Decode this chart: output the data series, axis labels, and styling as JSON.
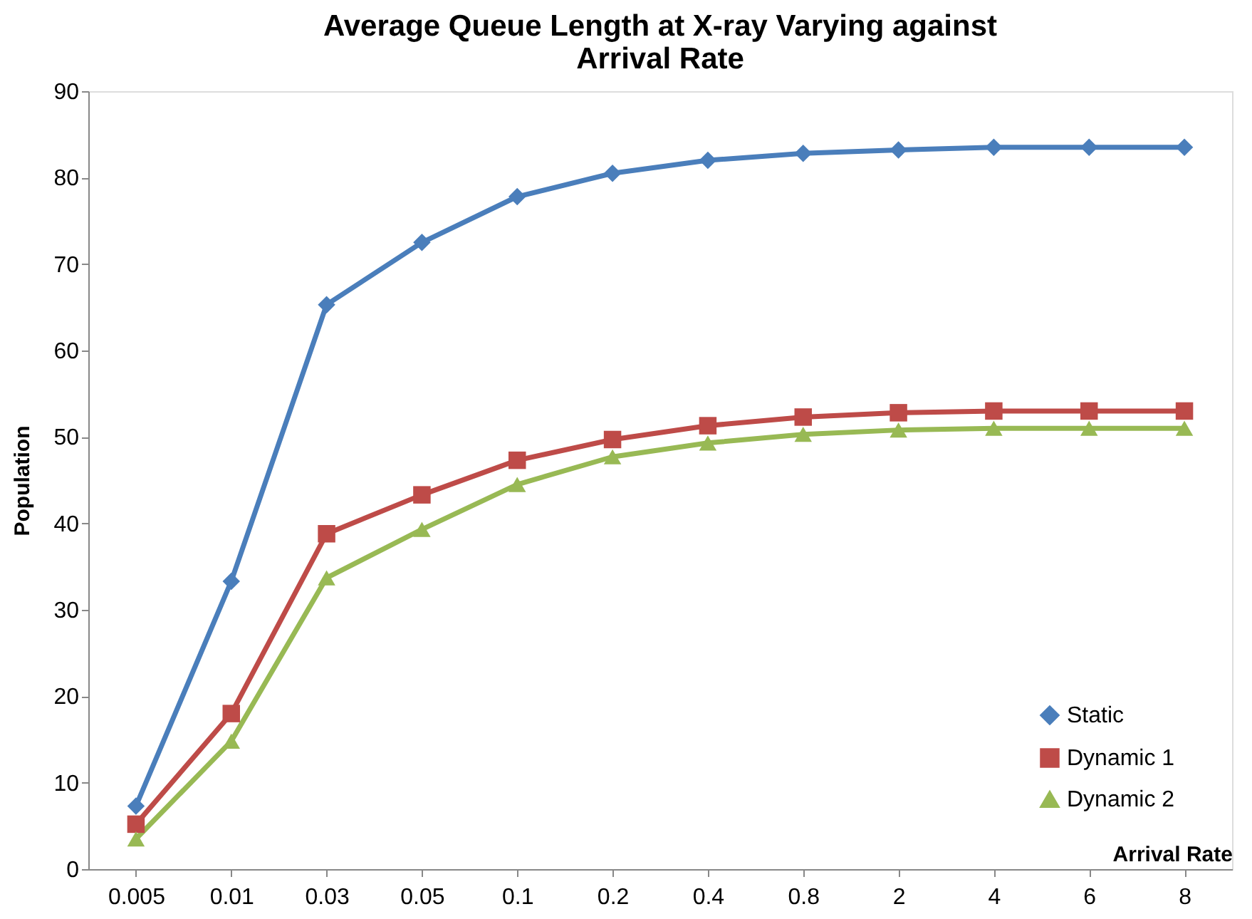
{
  "chart_data": {
    "type": "line",
    "title": "Average Queue Length at X-ray Varying against Arrival Rate",
    "xlabel": "Arrival Rate",
    "ylabel": "Population",
    "categories": [
      "0.005",
      "0.01",
      "0.03",
      "0.05",
      "0.1",
      "0.2",
      "0.4",
      "0.8",
      "2",
      "4",
      "6",
      "8"
    ],
    "ylim": [
      0,
      90
    ],
    "yticks": [
      0,
      10,
      20,
      30,
      40,
      50,
      60,
      70,
      80,
      90
    ],
    "grid": false,
    "legend": "bottom right",
    "line_style": "solid",
    "series": [
      {
        "name": "Static",
        "color": "#4a7ebb",
        "marker": "diamond",
        "values": [
          7.3,
          33.3,
          65.3,
          72.5,
          77.8,
          80.5,
          82,
          82.8,
          83.2,
          83.5,
          83.5,
          83.5
        ]
      },
      {
        "name": "Dynamic 1",
        "color": "#be4b48",
        "marker": "square",
        "values": [
          5.2,
          18,
          38.8,
          43.3,
          47.3,
          49.7,
          51.3,
          52.3,
          52.8,
          53,
          53,
          53
        ]
      },
      {
        "name": "Dynamic 2",
        "color": "#98b954",
        "marker": "triangle",
        "values": [
          3.5,
          14.8,
          33.7,
          39.3,
          44.5,
          47.7,
          49.3,
          50.3,
          50.8,
          51,
          51,
          51
        ]
      }
    ]
  }
}
